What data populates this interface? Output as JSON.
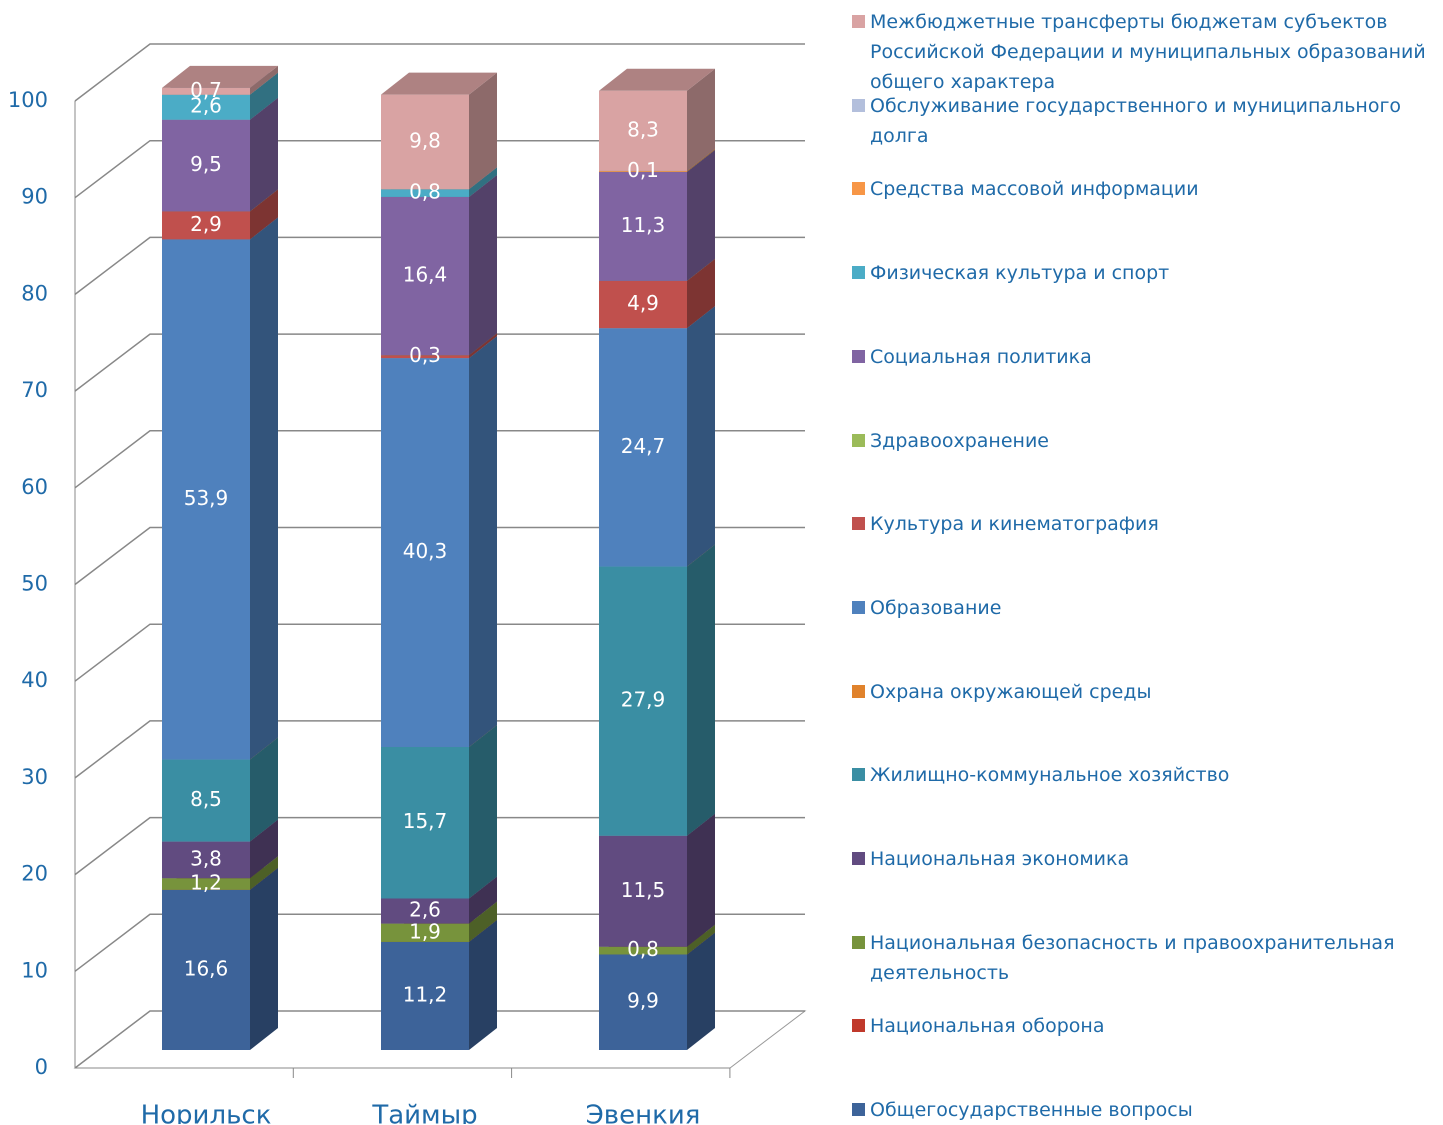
{
  "chart_data": {
    "type": "bar3d_stacked",
    "categories": [
      "Норильск",
      "Таймыр",
      "Эвенкия"
    ],
    "ylim": [
      0,
      100
    ],
    "yticks": [
      0,
      10,
      20,
      30,
      40,
      50,
      60,
      70,
      80,
      90,
      100
    ],
    "grid": true,
    "series": [
      {
        "name": "Общегосударственные вопросы",
        "color": "#3d6399",
        "values": [
          16.6,
          11.2,
          9.9
        ],
        "value_labels": [
          "16,6",
          "11,2",
          "9,9"
        ]
      },
      {
        "name": "Национальная оборона",
        "color": "#c0392b",
        "values": [
          0,
          0,
          0
        ],
        "value_labels": [
          null,
          null,
          null
        ]
      },
      {
        "name": "Национальная безопасность и правоохранительная деятельность",
        "color": "#77933c",
        "values": [
          1.2,
          1.9,
          0.8
        ],
        "value_labels": [
          "1,2",
          "1,9",
          "0,8"
        ]
      },
      {
        "name": "Национальная экономика",
        "color": "#614b80",
        "values": [
          3.8,
          2.6,
          11.5
        ],
        "value_labels": [
          "3,8",
          "2,6",
          "11,5"
        ]
      },
      {
        "name": "Жилищно-коммунальное хозяйство",
        "color": "#3a8ea3",
        "values": [
          8.5,
          15.7,
          27.9
        ],
        "value_labels": [
          "8,5",
          "15,7",
          "27,9"
        ]
      },
      {
        "name": "Охрана окружающей среды",
        "color": "#e0822c",
        "values": [
          0,
          0,
          0
        ],
        "value_labels": [
          null,
          null,
          null
        ]
      },
      {
        "name": "Образование",
        "color": "#4f81bd",
        "values": [
          53.9,
          40.3,
          24.7
        ],
        "value_labels": [
          "53,9",
          "40,3",
          "24,7"
        ]
      },
      {
        "name": "Культура и кинематография",
        "color": "#c0504d",
        "values": [
          2.9,
          0.3,
          4.9
        ],
        "value_labels": [
          "2,9",
          "0,3",
          "4,9"
        ]
      },
      {
        "name": "Здравоохранение",
        "color": "#9bbb59",
        "values": [
          0,
          0,
          0
        ],
        "value_labels": [
          null,
          null,
          null
        ]
      },
      {
        "name": "Социальная политика",
        "color": "#8064a2",
        "values": [
          9.5,
          16.4,
          11.3
        ],
        "value_labels": [
          "9,5",
          "16,4",
          "11,3"
        ]
      },
      {
        "name": "Физическая культура и спорт",
        "color": "#4bacc6",
        "values": [
          2.6,
          0.8,
          0
        ],
        "value_labels": [
          "2,6",
          "0,8",
          null
        ]
      },
      {
        "name": "Средства массовой информации",
        "color": "#f79646",
        "values": [
          0,
          0,
          0.1
        ],
        "value_labels": [
          null,
          null,
          "0,1"
        ]
      },
      {
        "name": "Обслуживание государственного и муниципального долга",
        "color": "#b3bfdc",
        "values": [
          0,
          0,
          0
        ],
        "value_labels": [
          null,
          null,
          null
        ]
      },
      {
        "name": "Межбюджетные трансферты бюджетам субъектов Российской Федерации и муниципальных образований общего характера",
        "color": "#d9a3a3",
        "values": [
          0.7,
          9.8,
          8.3
        ],
        "value_labels": [
          "0,7",
          "9,8",
          "8,3"
        ]
      }
    ]
  }
}
